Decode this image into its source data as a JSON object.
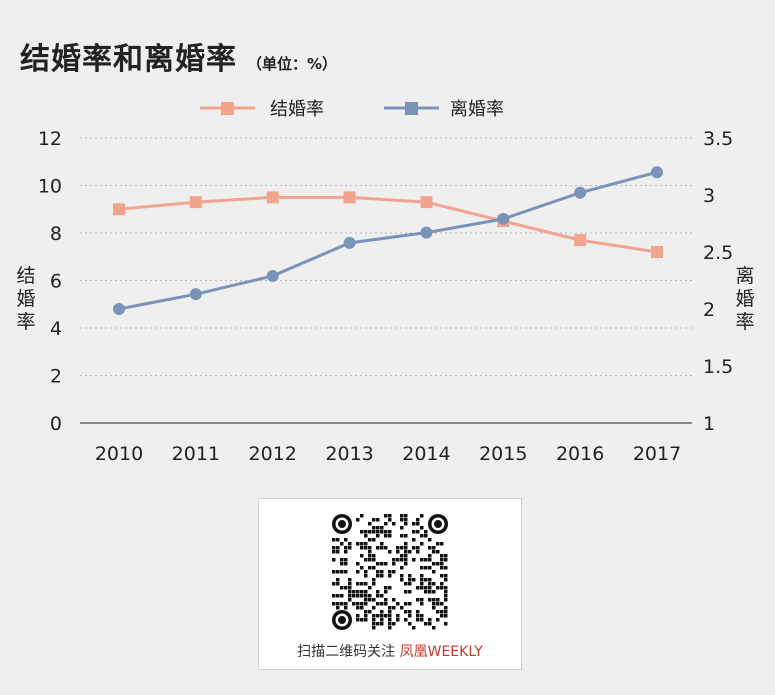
{
  "header": {
    "title": "结婚率和离婚率",
    "unit": "（单位：%）"
  },
  "chart_data": {
    "type": "line",
    "categories": [
      "2010",
      "2011",
      "2012",
      "2013",
      "2014",
      "2015",
      "2016",
      "2017"
    ],
    "series": [
      {
        "name": "结婚率",
        "axis": "left",
        "color": "#f2a58e",
        "marker": "square",
        "values": [
          9.0,
          9.3,
          9.5,
          9.5,
          9.3,
          8.5,
          7.7,
          7.2
        ]
      },
      {
        "name": "离婚率",
        "axis": "right",
        "color": "#7a93b8",
        "marker": "circle",
        "values": [
          2.0,
          2.13,
          2.29,
          2.58,
          2.67,
          2.79,
          3.02,
          3.2
        ]
      }
    ],
    "y_left": {
      "label": "结婚率",
      "ticks": [
        "0",
        "2",
        "4",
        "6",
        "8",
        "10",
        "12"
      ],
      "ylim": [
        0,
        12
      ]
    },
    "y_right": {
      "label": "离婚率",
      "ticks": [
        "1",
        "1.5",
        "2",
        "2.5",
        "3",
        "3.5"
      ],
      "ylim": [
        1,
        3.5
      ]
    },
    "grid": true,
    "legend": "top-center"
  },
  "qr": {
    "caption": "扫描二维码关注",
    "brand": "凤凰WEEKLY"
  }
}
